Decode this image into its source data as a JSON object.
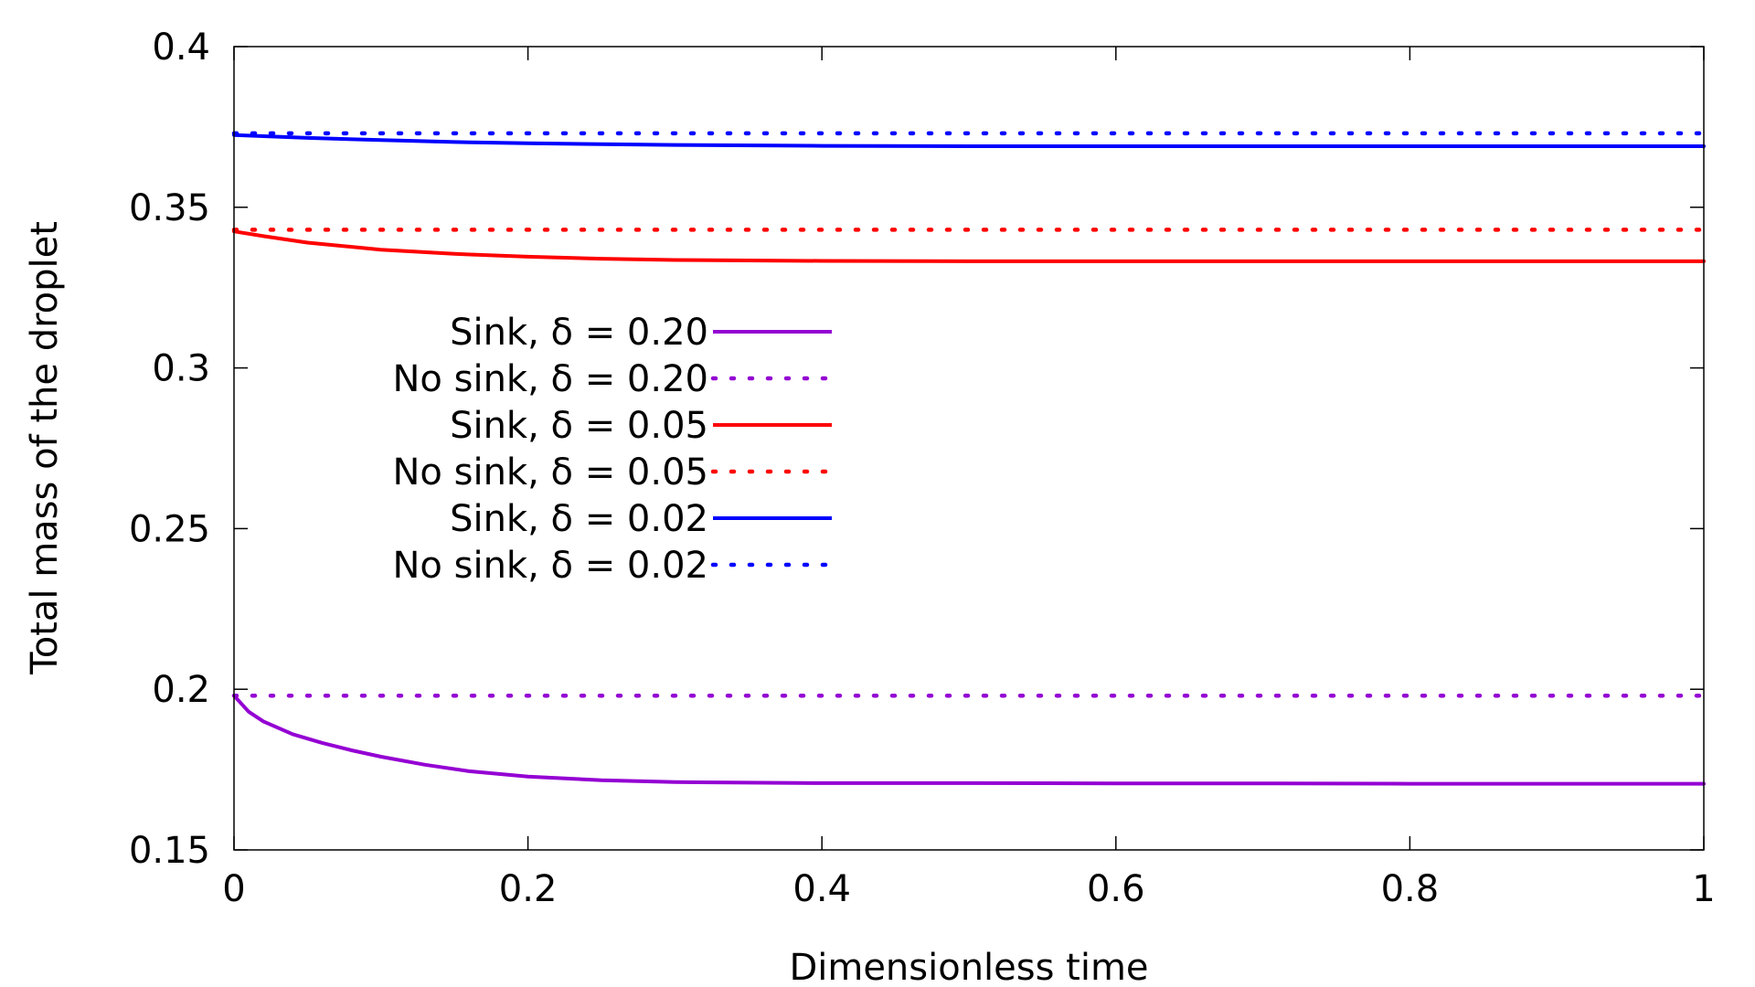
{
  "chart_data": {
    "type": "line",
    "title": "",
    "xlabel": "Dimensionless time",
    "ylabel": "Total mass of the droplet",
    "xlim": [
      0,
      1
    ],
    "ylim": [
      0.15,
      0.4
    ],
    "xticks": [
      0,
      0.2,
      0.4,
      0.6,
      0.8,
      1
    ],
    "xtick_labels": [
      "0",
      "0.2",
      "0.4",
      "0.6",
      "0.8",
      "1"
    ],
    "yticks": [
      0.15,
      0.2,
      0.25,
      0.3,
      0.35,
      0.4
    ],
    "ytick_labels": [
      "0.15",
      "0.2",
      "0.25",
      "0.3",
      "0.35",
      "0.4"
    ],
    "grid": false,
    "legend_position": "left",
    "series": [
      {
        "name": "Sink, δ = 0.20",
        "color": "#9400d3",
        "style": "solid",
        "x": [
          0,
          0.01,
          0.02,
          0.04,
          0.06,
          0.08,
          0.1,
          0.13,
          0.16,
          0.2,
          0.25,
          0.3,
          0.4,
          0.5,
          0.6,
          0.7,
          0.8,
          0.9,
          1.0
        ],
        "y": [
          0.198,
          0.193,
          0.19,
          0.186,
          0.1833,
          0.181,
          0.179,
          0.1765,
          0.1745,
          0.1728,
          0.1717,
          0.1711,
          0.1708,
          0.1708,
          0.1707,
          0.1707,
          0.1706,
          0.1706,
          0.1706
        ]
      },
      {
        "name": "No sink, δ = 0.20",
        "color": "#9400d3",
        "style": "dotted",
        "x": [
          0,
          1
        ],
        "y": [
          0.198,
          0.198
        ]
      },
      {
        "name": "Sink, δ = 0.05",
        "color": "#ff0000",
        "style": "solid",
        "x": [
          0,
          0.02,
          0.05,
          0.1,
          0.15,
          0.2,
          0.25,
          0.3,
          0.4,
          0.5,
          0.6,
          0.7,
          0.8,
          0.9,
          1.0
        ],
        "y": [
          0.3425,
          0.341,
          0.339,
          0.3368,
          0.3355,
          0.3346,
          0.334,
          0.3336,
          0.3333,
          0.3332,
          0.3332,
          0.3332,
          0.3332,
          0.3332,
          0.3332
        ]
      },
      {
        "name": "No sink, δ = 0.05",
        "color": "#ff0000",
        "style": "dotted",
        "x": [
          0,
          1
        ],
        "y": [
          0.343,
          0.343
        ]
      },
      {
        "name": "Sink, δ = 0.02",
        "color": "#0000ff",
        "style": "solid",
        "x": [
          0,
          0.05,
          0.1,
          0.15,
          0.2,
          0.3,
          0.4,
          0.5,
          0.6,
          0.7,
          0.8,
          0.9,
          1.0
        ],
        "y": [
          0.3725,
          0.3716,
          0.3709,
          0.3703,
          0.3699,
          0.3694,
          0.3691,
          0.369,
          0.369,
          0.369,
          0.369,
          0.369,
          0.369
        ]
      },
      {
        "name": "No sink, δ = 0.02",
        "color": "#0000ff",
        "style": "dotted",
        "x": [
          0,
          1
        ],
        "y": [
          0.373,
          0.373
        ]
      }
    ]
  }
}
